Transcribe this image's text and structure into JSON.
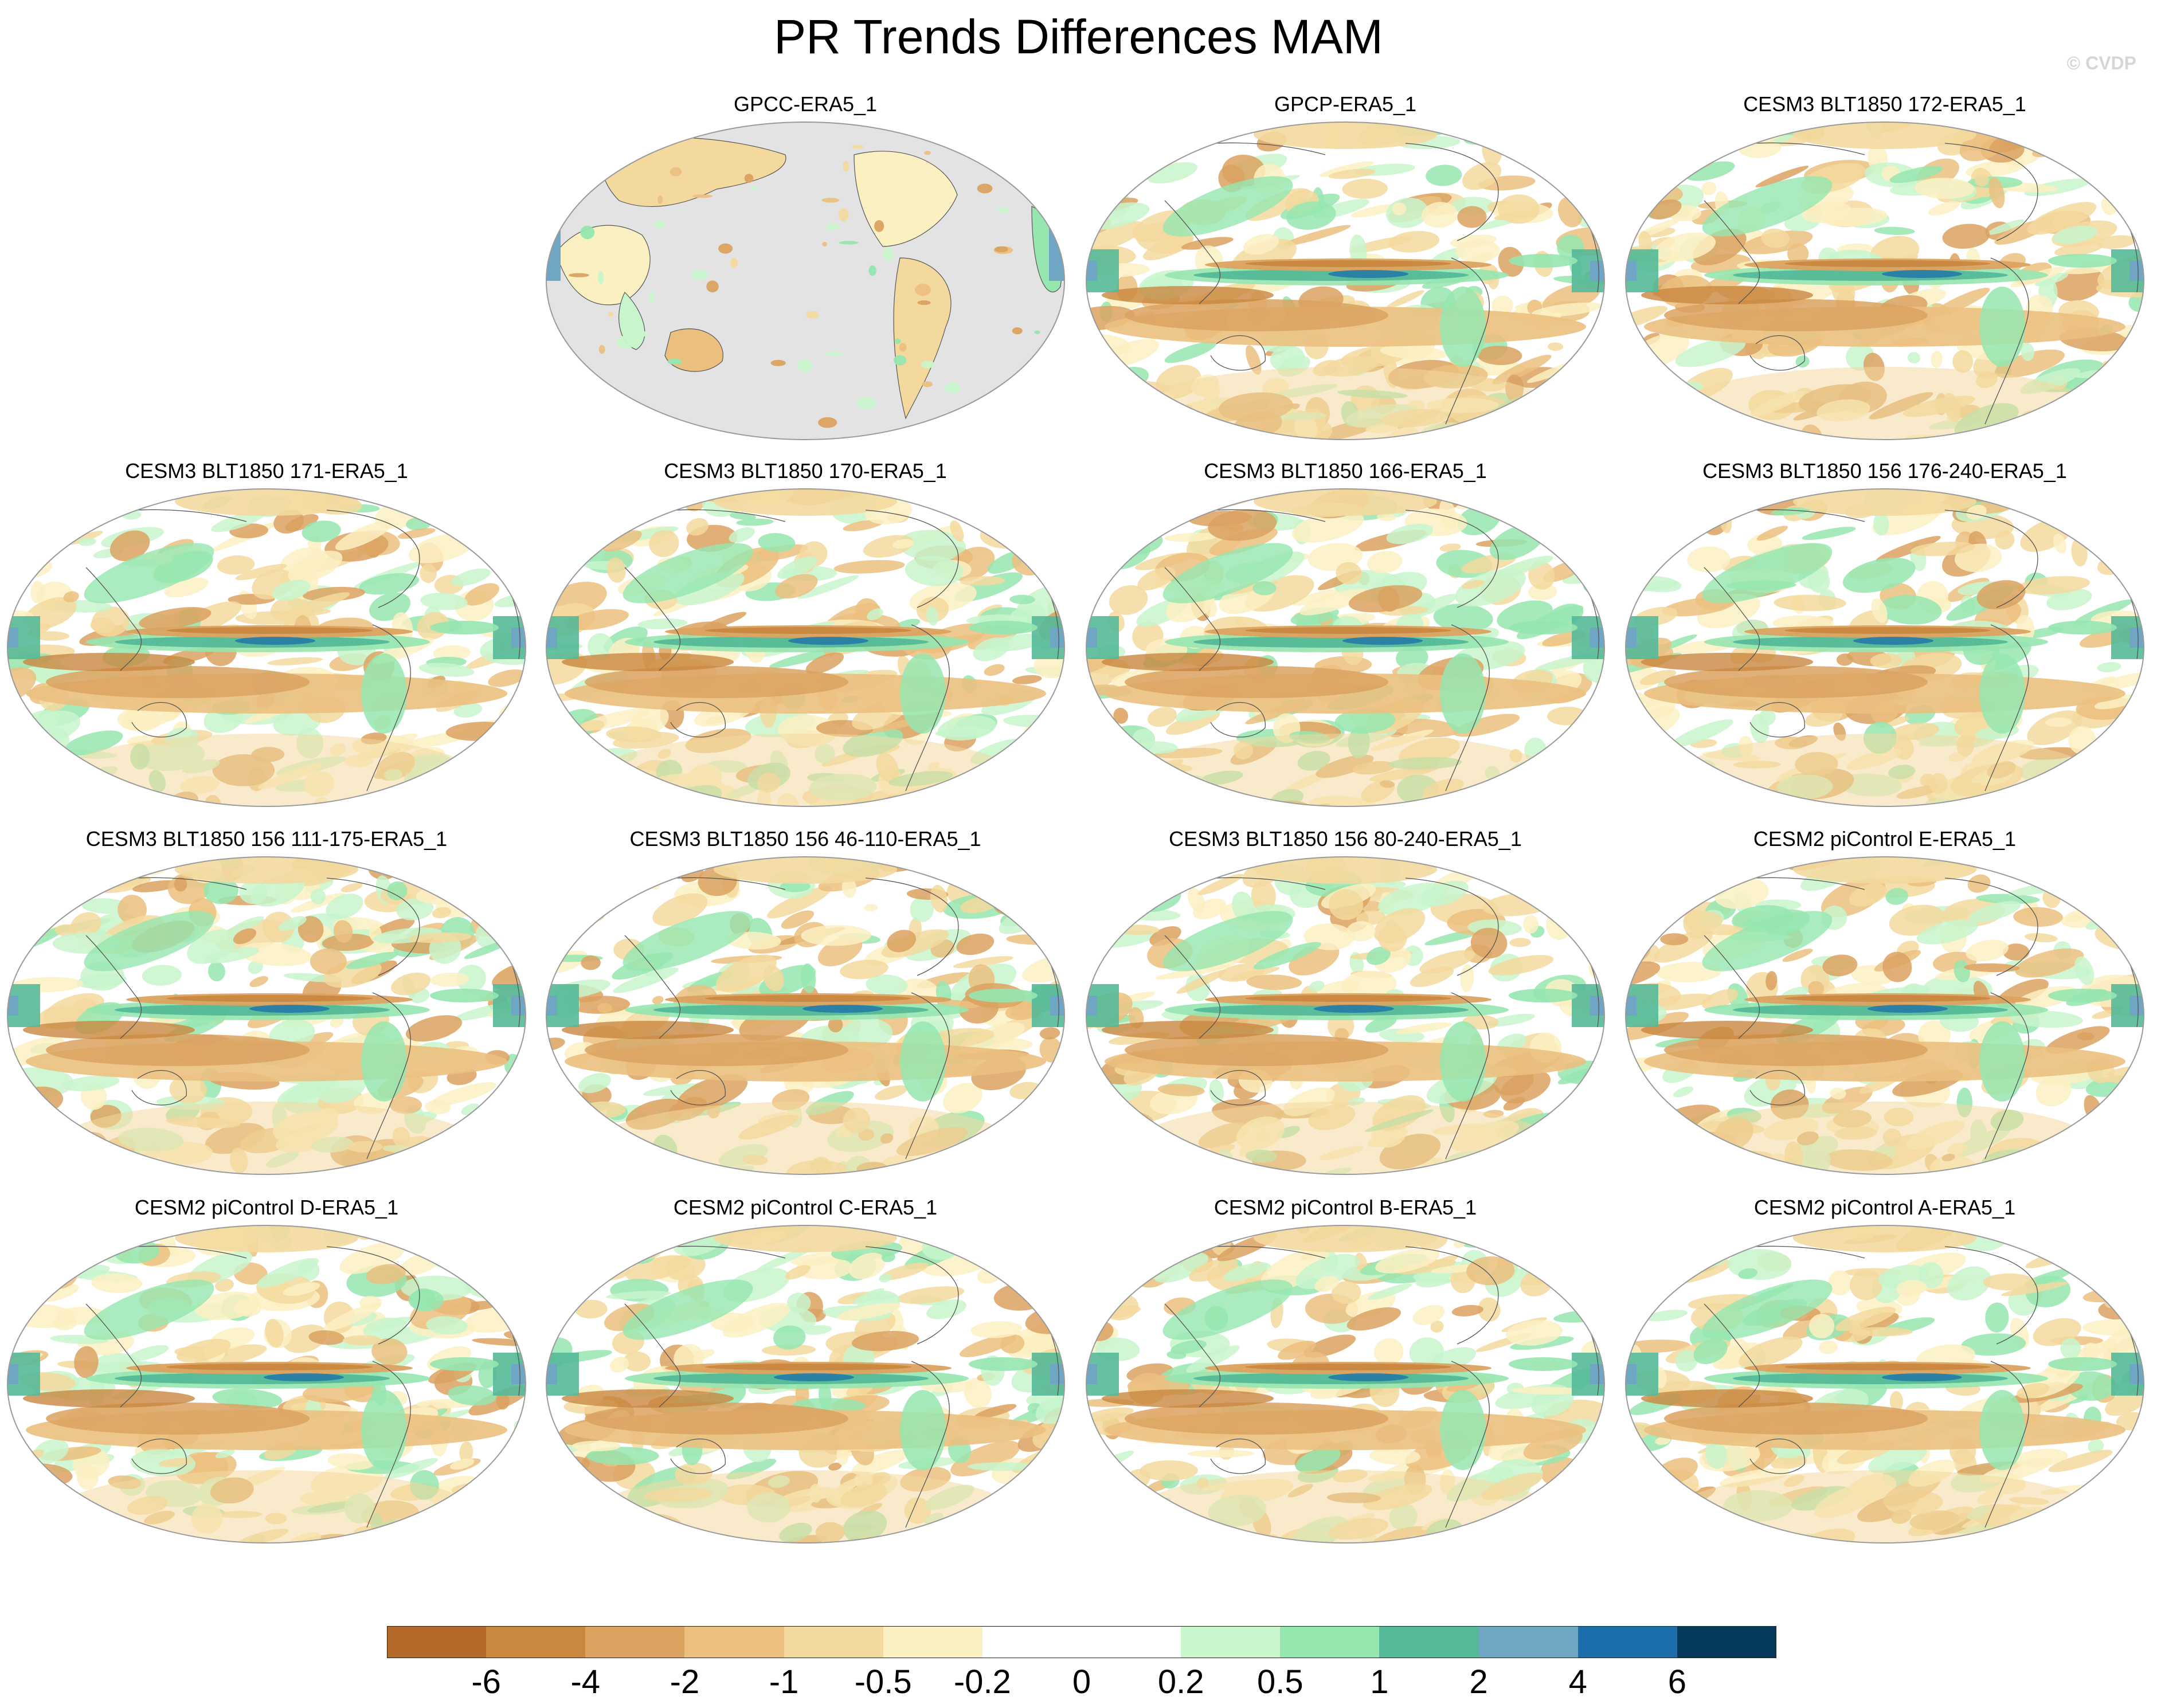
{
  "title": "PR Trends Differences MAM",
  "watermark": "© CVDP",
  "panels": [
    {
      "title": "GPCC-ERA5_1",
      "style": "obs_land"
    },
    {
      "title": "GPCP-ERA5_1",
      "style": "full"
    },
    {
      "title": "CESM3 BLT1850 172-ERA5_1",
      "style": "full"
    },
    {
      "title": "CESM3 BLT1850 171-ERA5_1",
      "style": "full"
    },
    {
      "title": "CESM3 BLT1850 170-ERA5_1",
      "style": "full"
    },
    {
      "title": "CESM3 BLT1850 166-ERA5_1",
      "style": "full"
    },
    {
      "title": "CESM3 BLT1850 156 176-240-ERA5_1",
      "style": "full"
    },
    {
      "title": "CESM3 BLT1850 156 111-175-ERA5_1",
      "style": "full"
    },
    {
      "title": "CESM3 BLT1850 156 46-110-ERA5_1",
      "style": "full"
    },
    {
      "title": "CESM3 BLT1850 156 80-240-ERA5_1",
      "style": "full"
    },
    {
      "title": "CESM2 piControl E-ERA5_1",
      "style": "full"
    },
    {
      "title": "CESM2 piControl D-ERA5_1",
      "style": "full"
    },
    {
      "title": "CESM2 piControl C-ERA5_1",
      "style": "full"
    },
    {
      "title": "CESM2 piControl B-ERA5_1",
      "style": "full"
    },
    {
      "title": "CESM2 piControl A-ERA5_1",
      "style": "full"
    }
  ],
  "colorbar": {
    "labels": [
      "-6",
      "-4",
      "-2",
      "-1",
      "-0.5",
      "-0.2",
      "0",
      "0.2",
      "0.5",
      "1",
      "2",
      "4",
      "6"
    ],
    "colors": [
      "#b56a2c",
      "#c98740",
      "#dba260",
      "#ebc07f",
      "#f3d99e",
      "#fbf0c2",
      "#ffffff",
      "#ffffff",
      "#c8f5cc",
      "#96e6b0",
      "#55b998",
      "#6fa6c4",
      "#1b6eaa",
      "#063a5b"
    ]
  },
  "map_colors": {
    "ocean_gray": "#e3e3e3",
    "coast": "#555555",
    "outline": "#9a9a9a"
  }
}
